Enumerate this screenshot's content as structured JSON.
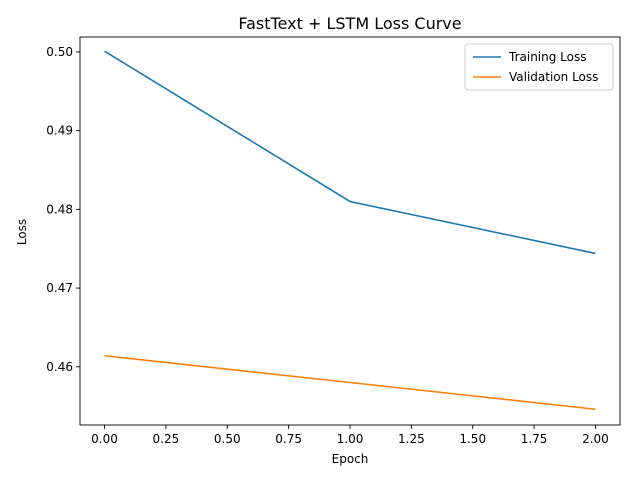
{
  "chart_data": {
    "type": "line",
    "title": "FastText + LSTM Loss Curve",
    "xlabel": "Epoch",
    "ylabel": "Loss",
    "x": [
      0,
      1,
      2
    ],
    "xlim": [
      -0.1,
      2.1
    ],
    "ylim": [
      0.4526,
      0.5019
    ],
    "xticks": [
      0.0,
      0.25,
      0.5,
      0.75,
      1.0,
      1.25,
      1.5,
      1.75,
      2.0
    ],
    "xtick_labels": [
      "0.00",
      "0.25",
      "0.50",
      "0.75",
      "1.00",
      "1.25",
      "1.50",
      "1.75",
      "2.00"
    ],
    "yticks": [
      0.46,
      0.47,
      0.48,
      0.49,
      0.5
    ],
    "ytick_labels": [
      "0.46",
      "0.47",
      "0.48",
      "0.49",
      "0.50"
    ],
    "grid": false,
    "legend_position": "top-right",
    "series": [
      {
        "name": "Training Loss",
        "color": "#1f77b4",
        "values": [
          0.5001,
          0.481,
          0.4744
        ]
      },
      {
        "name": "Validation Loss",
        "color": "#ff7f0e",
        "values": [
          0.4614,
          0.458,
          0.4546
        ]
      }
    ]
  }
}
